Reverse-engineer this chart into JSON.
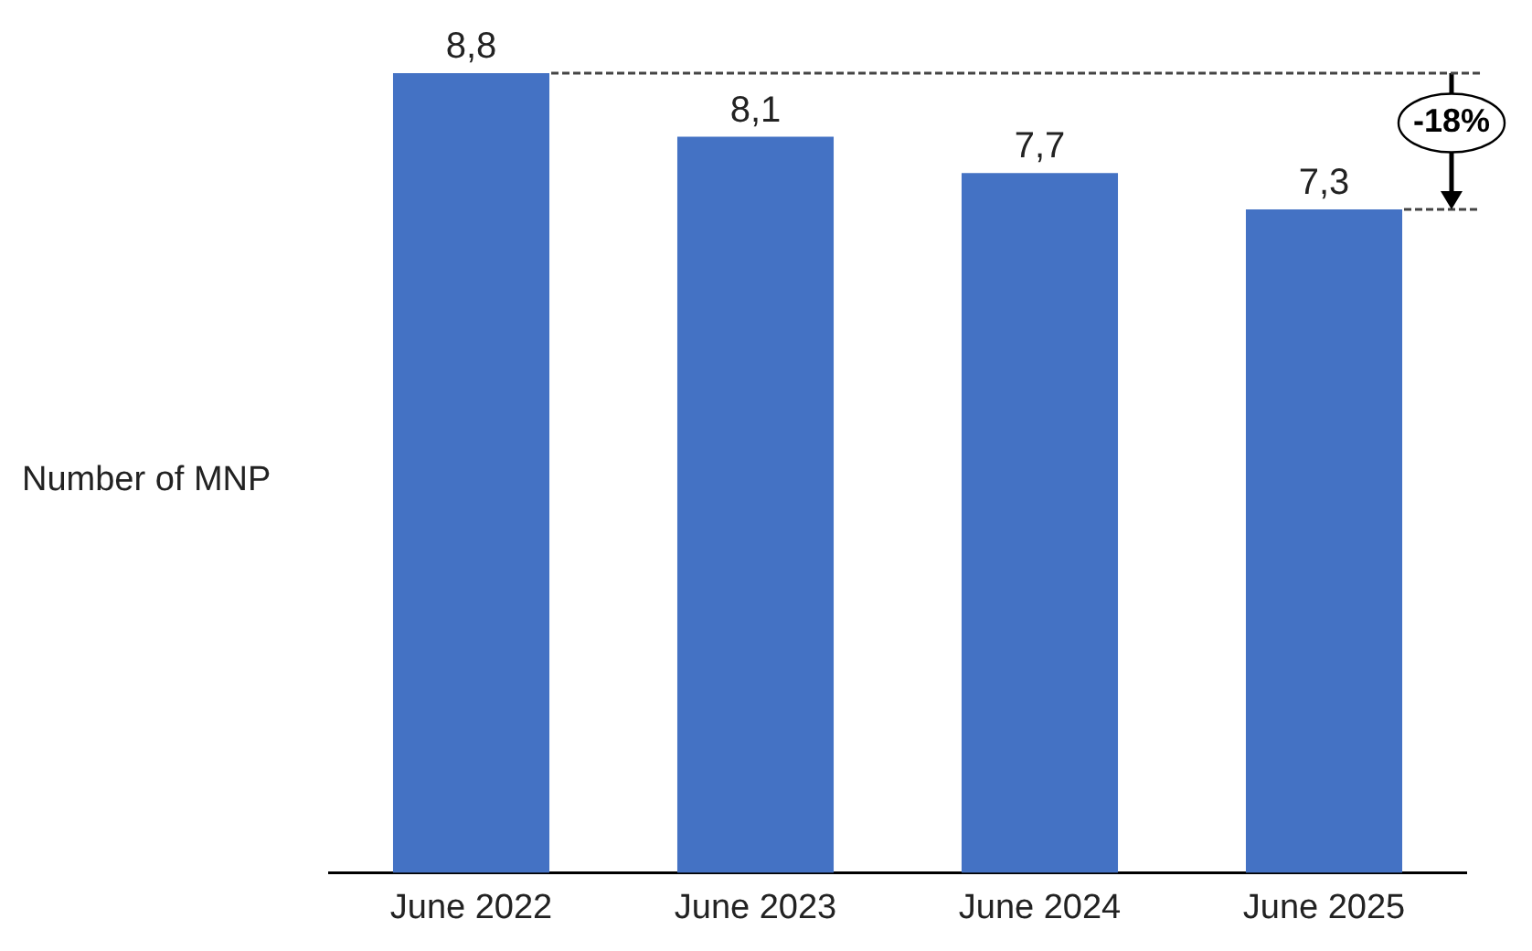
{
  "chart_data": {
    "type": "bar",
    "ylabel": "Number of MNP",
    "categories": [
      "June 2022",
      "June 2023",
      "June 2024",
      "June 2025"
    ],
    "values": [
      8.8,
      8.1,
      7.7,
      7.3
    ],
    "color": "#4472c4",
    "value_labels": [
      "8,8",
      "8,1",
      "7,7",
      "7,3"
    ],
    "annotations": [
      "-18%"
    ],
    "ref_lines": [
      {
        "axis": "y",
        "value": 8.8,
        "line_style": "dashed",
        "color": "#444444"
      }
    ],
    "grid": false,
    "legend": false
  }
}
